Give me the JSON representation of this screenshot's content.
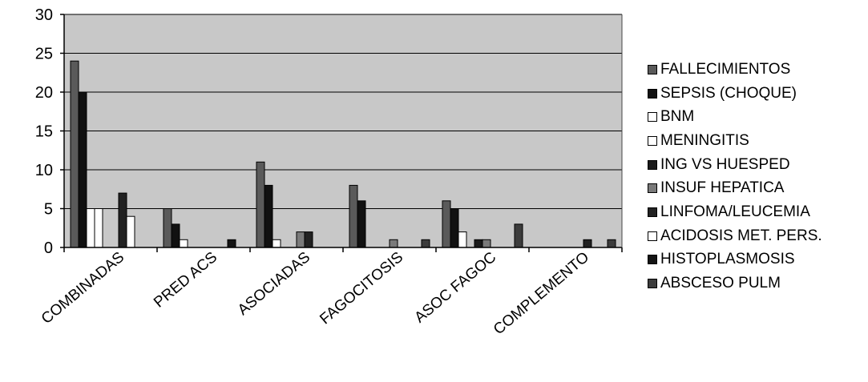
{
  "chart_data": {
    "type": "bar",
    "categories": [
      "COMBINADAS",
      "PRED ACS",
      "ASOCIADAS",
      "FAGOCITOSIS",
      "ASOC FAGOC",
      "COMPLEMENTO"
    ],
    "ylim": [
      0,
      30
    ],
    "yticks": [
      0,
      5,
      10,
      15,
      20,
      25,
      30
    ],
    "grid": true,
    "plot_background": "#c8c8c8",
    "legend_position": "right",
    "series": [
      {
        "name": "FALLECIMIENTOS",
        "color": "#5a5a5a",
        "values": [
          24,
          5,
          11,
          8,
          6,
          0
        ]
      },
      {
        "name": "SEPSIS (CHOQUE)",
        "color": "#111111",
        "values": [
          20,
          3,
          8,
          6,
          5,
          0
        ]
      },
      {
        "name": "BNM",
        "color": "#ffffff",
        "values": [
          5,
          1,
          1,
          0,
          2,
          0
        ]
      },
      {
        "name": "MENINGITIS",
        "color": "#ffffff",
        "values": [
          5,
          0,
          0,
          0,
          0,
          0
        ]
      },
      {
        "name": "ING VS HUESPED",
        "color": "#1a1a1a",
        "values": [
          0,
          0,
          0,
          0,
          1,
          0
        ]
      },
      {
        "name": "INSUF HEPATICA",
        "color": "#7a7a7a",
        "values": [
          0,
          0,
          2,
          1,
          1,
          0
        ]
      },
      {
        "name": "LINFOMA/LEUCEMIA",
        "color": "#222222",
        "values": [
          7,
          0,
          2,
          0,
          0,
          1
        ]
      },
      {
        "name": "ACIDOSIS MET. PERS.",
        "color": "#ffffff",
        "values": [
          4,
          0,
          0,
          0,
          0,
          0
        ]
      },
      {
        "name": "HISTOPLASMOSIS",
        "color": "#141414",
        "values": [
          0,
          1,
          0,
          0,
          0,
          0
        ]
      },
      {
        "name": "ABSCESO PULM",
        "color": "#3c3c3c",
        "values": [
          0,
          0,
          0,
          1,
          3,
          1
        ]
      }
    ]
  }
}
